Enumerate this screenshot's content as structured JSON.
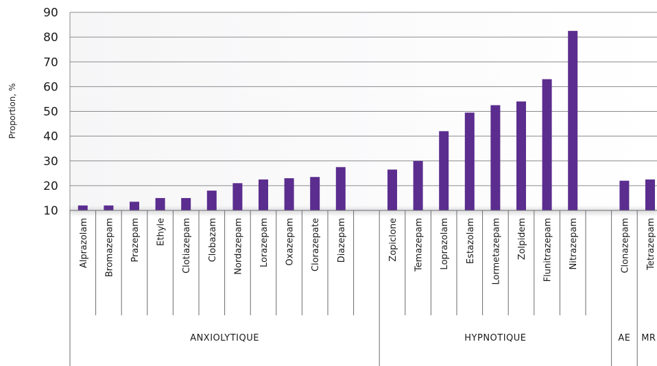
{
  "chart_data": {
    "type": "bar",
    "ylabel": "Proportion, %",
    "ylim": [
      10,
      90
    ],
    "yticks": [
      10,
      20,
      30,
      40,
      50,
      60,
      70,
      80,
      90
    ],
    "grid": true,
    "bar_color": "#5b2d8e",
    "categories": [
      "Alprazolam",
      "Bromazepam",
      "Prazepam",
      "Ethyle",
      "Clotiazepam",
      "Clobazam",
      "Nordazepam",
      "Lorazepam",
      "Oxazepam",
      "Clorazepate",
      "Diazepam",
      "",
      "Zopiclone",
      "Temazepam",
      "Loprazolam",
      "Estazolam",
      "Lormetazepam",
      "Zolpidem",
      "Flunitrazepam",
      "Nitrazepam",
      "",
      "Clonazepam",
      "Tetrazepam"
    ],
    "values": [
      12,
      12,
      13.5,
      15,
      15,
      18,
      21,
      22.5,
      23,
      23.5,
      27.5,
      null,
      26.5,
      30,
      42,
      49.5,
      52.5,
      54,
      63,
      82.5,
      null,
      22,
      22.5
    ],
    "groups": [
      {
        "label": "ANXIOLYTIQUE",
        "start": 0,
        "end": 11
      },
      {
        "label": "HYPNOTIQUE",
        "start": 12,
        "end": 20
      },
      {
        "label": "AE",
        "start": 21,
        "end": 21
      },
      {
        "label": "MR",
        "start": 22,
        "end": 22
      }
    ]
  }
}
